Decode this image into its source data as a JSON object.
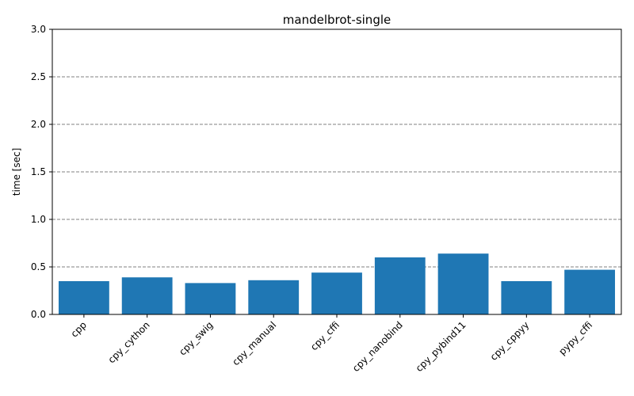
{
  "chart_data": {
    "type": "bar",
    "title": "mandelbrot-single",
    "xlabel": "",
    "ylabel": "time [sec]",
    "categories": [
      "cpp",
      "cpy_cython",
      "cpy_swig",
      "cpy_manual",
      "cpy_cffi",
      "cpy_nanobind",
      "cpy_pybind11",
      "cpy_cppyy",
      "pypy_cffi"
    ],
    "values": [
      0.35,
      0.39,
      0.33,
      0.36,
      0.44,
      0.6,
      0.64,
      0.35,
      0.47
    ],
    "ylim": [
      0,
      3.0
    ],
    "yticks": [
      0.0,
      0.5,
      1.0,
      1.5,
      2.0,
      2.5,
      3.0
    ],
    "ytick_labels": [
      "0.0",
      "0.5",
      "1.0",
      "1.5",
      "2.0",
      "2.5",
      "3.0"
    ],
    "grid": "y, dashed",
    "legend": "none",
    "bar_color": "#1f77b4",
    "grid_color": "#808080"
  }
}
